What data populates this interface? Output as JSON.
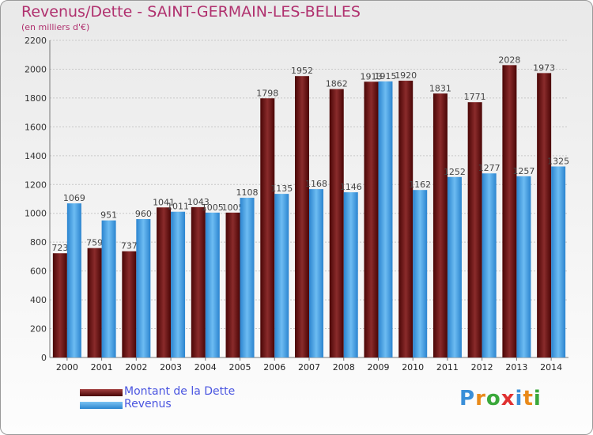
{
  "chart_data": {
    "type": "bar",
    "title": "Revenus/Dette - SAINT-GERMAIN-LES-BELLES",
    "subtitle": "(en milliers d'€)",
    "categories": [
      "2000",
      "2001",
      "2002",
      "2003",
      "2004",
      "2005",
      "2006",
      "2007",
      "2008",
      "2009",
      "2010",
      "2011",
      "2012",
      "2013",
      "2014"
    ],
    "series": [
      {
        "name": "Montant de la Dette",
        "values": [
          723,
          759,
          737,
          1041,
          1043,
          1005,
          1798,
          1952,
          1862,
          1913,
          1920,
          1831,
          1771,
          2028,
          1973
        ],
        "color": "#7a1a1a"
      },
      {
        "name": "Revenus",
        "values": [
          1069,
          951,
          960,
          1011,
          1005,
          1108,
          1135,
          1168,
          1146,
          1915,
          1162,
          1252,
          1277,
          1257,
          1325
        ],
        "color": "#4aa3e6"
      }
    ],
    "value_labels": [
      [
        "723",
        "759",
        "737",
        "1041",
        "1043",
        "1005",
        "1798",
        "1952",
        "1862",
        "1913",
        "1920",
        "1831",
        "1771",
        "2028",
        "1973"
      ],
      [
        "1069",
        "951",
        "960",
        "1011",
        "1005",
        "1108",
        "1135",
        "1168",
        "1146",
        "1915",
        "1162",
        "1252",
        "1277",
        "1257",
        "1325"
      ]
    ],
    "ylim": [
      0,
      2200
    ],
    "yticks": [
      0,
      200,
      400,
      600,
      800,
      1000,
      1200,
      1400,
      1600,
      1800,
      2000,
      2200
    ],
    "grid": true,
    "legend_position": "bottom-left"
  },
  "logo": {
    "letters": [
      "P",
      "r",
      "o",
      "x",
      "i",
      "t",
      "i"
    ],
    "colors": [
      "#3a8fd8",
      "#e98a1a",
      "#3aa83a",
      "#e03030",
      "#3a8fd8",
      "#e98a1a",
      "#3aa83a"
    ]
  }
}
